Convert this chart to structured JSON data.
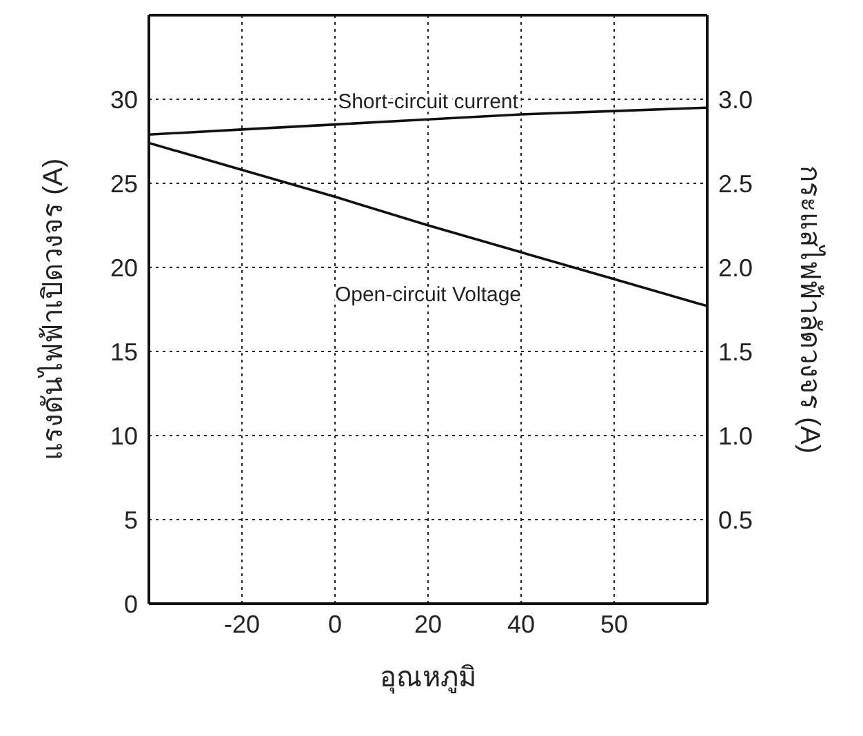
{
  "chart_data": {
    "type": "line",
    "categories": [
      null,
      "-20",
      "0",
      "20",
      "40",
      "50",
      null
    ],
    "xlabel": "อุณหภูมิ",
    "ylabel": "แรงดันไฟฟ้าเปิดวงจร (A)",
    "y2label": "กระแสไฟฟ้าลัดวงจร (A)",
    "series": [
      {
        "name": "Short-circuit current",
        "color": "#111111",
        "axis": "y2",
        "values": [
          2.79,
          2.82,
          2.85,
          2.88,
          2.91,
          2.93,
          2.95
        ]
      },
      {
        "name": "Open-circuit Voltage",
        "color": "#111111",
        "values": [
          27.4,
          25.8,
          24.2,
          22.5,
          20.9,
          19.3,
          17.7
        ]
      }
    ],
    "ylim": [
      0,
      35
    ],
    "yticks": [
      0,
      5,
      10,
      15,
      20,
      25,
      30
    ],
    "y2lim": [
      0,
      3.5
    ],
    "y2ticks": [
      {
        "value": 0.5,
        "label": "0.5"
      },
      {
        "value": 1,
        "label": "1.0"
      },
      {
        "value": 1.5,
        "label": "1.5"
      },
      {
        "value": 2,
        "label": "2.0"
      },
      {
        "value": 2.5,
        "label": "2.5"
      },
      {
        "value": 3,
        "label": "3.0"
      }
    ],
    "grid": true,
    "legend": false,
    "marker": "none",
    "line_style": "solid"
  }
}
